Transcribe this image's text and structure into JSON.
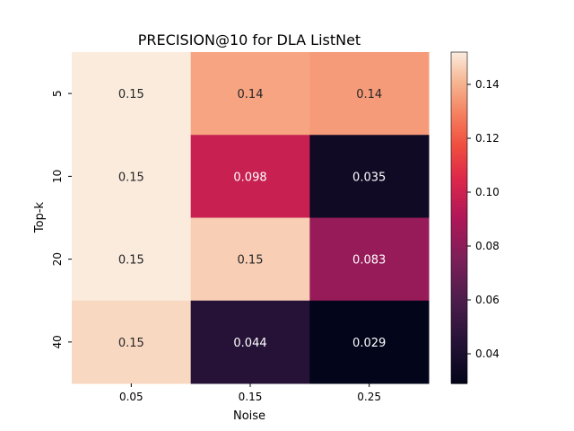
{
  "chart_data": {
    "type": "heatmap",
    "title": "PRECISION@10 for DLA ListNet",
    "xlabel": "Noise",
    "ylabel": "Top-k",
    "x_categories": [
      "0.05",
      "0.15",
      "0.25"
    ],
    "y_categories": [
      "5",
      "10",
      "20",
      "40"
    ],
    "values": [
      [
        0.15,
        0.14,
        0.14
      ],
      [
        0.15,
        0.098,
        0.035
      ],
      [
        0.15,
        0.15,
        0.083
      ],
      [
        0.15,
        0.044,
        0.029
      ]
    ],
    "numeric_values": [
      [
        0.152,
        0.137,
        0.135
      ],
      [
        0.152,
        0.098,
        0.035
      ],
      [
        0.152,
        0.146,
        0.083
      ],
      [
        0.148,
        0.044,
        0.029
      ]
    ],
    "colorbar": {
      "min": 0.029,
      "max": 0.152,
      "ticks": [
        "0.04",
        "0.06",
        "0.08",
        "0.10",
        "0.12",
        "0.14"
      ],
      "tick_values": [
        0.04,
        0.06,
        0.08,
        0.1,
        0.12,
        0.14
      ],
      "colormap": "rocket"
    }
  }
}
